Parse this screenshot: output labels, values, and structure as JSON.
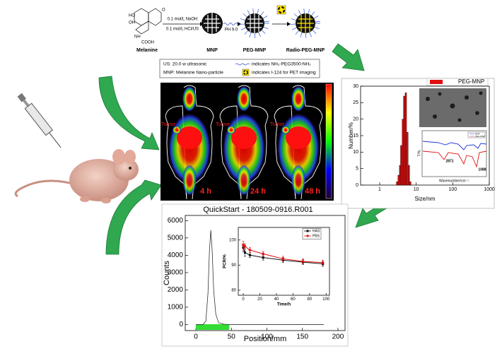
{
  "scheme": {
    "reagent1": "0.1 mol/L NaOH",
    "reagent2": "0.1 mol/L HCl/US",
    "step2": "PH 9.0",
    "labels": [
      "Melanine",
      "MNP",
      "PEG-MNP",
      "Radio-PEG-MNP"
    ],
    "structure": [
      "HO",
      "OH",
      "O",
      "NH",
      "COOH"
    ]
  },
  "legend": {
    "line1": "US: 20.0 w ultrasonic",
    "line2": "MNP: Melanine Nano-particle",
    "peg": "indicates NH₂-PEG3500-NH₂",
    "iodine": "indicates I-124 for PET imaging"
  },
  "pet": {
    "tumor": [
      "Tumor",
      "Tumor",
      "Tumor"
    ],
    "times": [
      "4 h",
      "24 h",
      "48 h"
    ]
  },
  "ftir_inset": {
    "xlabel": "Wavenumber/cm⁻¹",
    "ylabel": "T/%",
    "peaks": [
      2871,
      1088
    ],
    "legend": [
      "MNP",
      "PEG-MNP"
    ]
  },
  "chart_data": [
    {
      "type": "bar",
      "xlabel": "Size/nm",
      "ylabel": "Number/%",
      "xscale": "log",
      "xlim": [
        0.3,
        1000
      ],
      "xticks": [
        1,
        10,
        100,
        1000
      ],
      "ylim": [
        0,
        30
      ],
      "yticks": [
        0,
        5,
        10,
        15,
        20,
        25,
        30
      ],
      "x": [
        3.0,
        3.3,
        3.6,
        3.9,
        4.3,
        4.7,
        5.2,
        5.7,
        6.3,
        6.9
      ],
      "series": [
        {
          "name": "PEG-MNP",
          "color": "#e01010",
          "values": [
            1,
            3,
            6,
            12,
            20,
            27,
            28,
            16,
            6,
            1
          ]
        }
      ],
      "legend": "upper right"
    },
    {
      "type": "line",
      "title": "QuickStart - 180509-0916.R001",
      "xlabel": "Position/mm",
      "ylabel": "Counts",
      "xlim": [
        -15,
        210
      ],
      "xticks": [
        0,
        50,
        100,
        150,
        200
      ],
      "ylim": [
        -350,
        6300
      ],
      "yticks": [
        0,
        1000,
        2000,
        3000,
        4000,
        5000,
        6000
      ],
      "x": [
        0,
        10,
        14,
        17,
        19,
        21,
        23,
        25,
        28,
        32,
        40,
        50,
        100,
        150,
        180
      ],
      "values": [
        0,
        0,
        200,
        1800,
        4200,
        5450,
        4200,
        2000,
        600,
        100,
        10,
        0,
        0,
        0,
        0
      ],
      "color": "#333333",
      "highlight_range": [
        0,
        47
      ],
      "highlight_color": "#33dd33"
    },
    {
      "type": "line",
      "xlabel": "Time/h",
      "ylabel": "PCR/%",
      "xlim": [
        -6,
        104
      ],
      "xticks": [
        0,
        20,
        40,
        60,
        80,
        100
      ],
      "ylim": [
        78,
        105
      ],
      "yticks": [
        80,
        90,
        100
      ],
      "x": [
        0,
        2,
        8,
        24,
        48,
        72,
        96
      ],
      "series": [
        {
          "name": "HAS",
          "color": "#111111",
          "marker": "square",
          "values": [
            97,
            95,
            94,
            93,
            92,
            91.2,
            90.5
          ],
          "errors": [
            1.5,
            1.5,
            1,
            1,
            1,
            1,
            1
          ]
        },
        {
          "name": "PBS",
          "color": "#e01010",
          "marker": "circle",
          "values": [
            98,
            97.5,
            96,
            94.5,
            92.5,
            91.5,
            91
          ],
          "errors": [
            1.5,
            1,
            1,
            1,
            1,
            1,
            1
          ]
        }
      ],
      "legend": "upper right"
    }
  ]
}
